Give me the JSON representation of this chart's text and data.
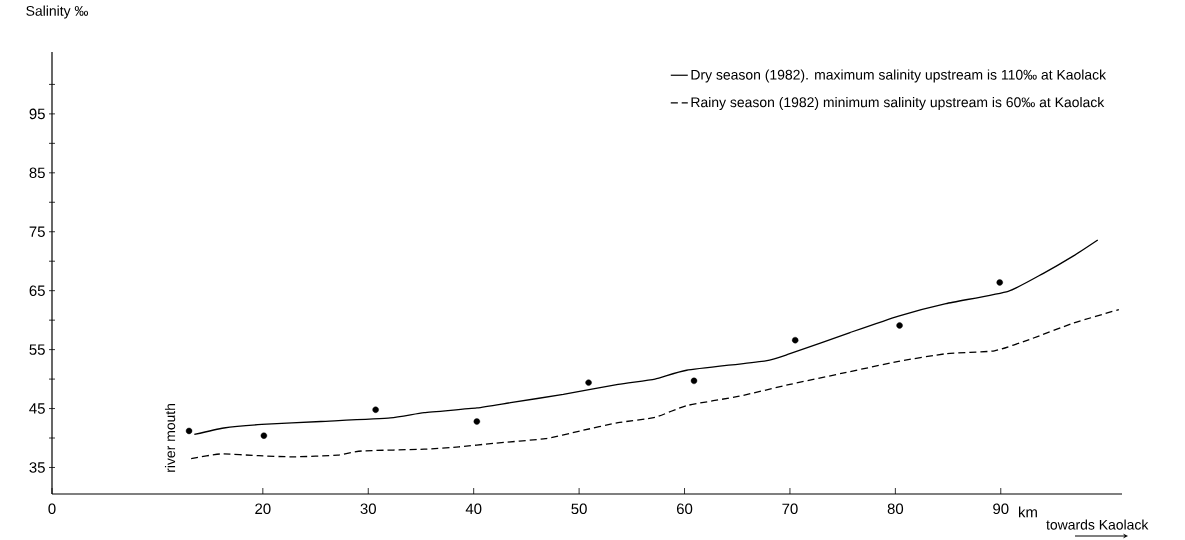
{
  "chart_data": {
    "type": "line",
    "ylabel": "Salinity ‰",
    "xlabel": "km",
    "annotations": [
      "river mouth",
      "towards Kaolack"
    ],
    "xlim": [
      0,
      101.5
    ],
    "xticks": [
      0,
      20,
      30,
      40,
      50,
      60,
      70,
      80,
      90
    ],
    "ylim": [
      30.5,
      105.5
    ],
    "yticks": [
      35,
      {
        "value": 40,
        "label": null
      },
      45,
      {
        "value": 50,
        "label": null
      },
      55,
      {
        "value": 60,
        "label": null
      },
      65,
      {
        "value": 70,
        "label": null
      },
      75,
      {
        "value": 80,
        "label": null
      },
      85,
      {
        "value": 90,
        "label": null
      },
      95,
      {
        "value": 100,
        "label": null
      }
    ],
    "legend": "top right",
    "grid": false,
    "series": [
      {
        "name": "Dry season (1982). maximum salinity upstream is 110‰ at Kaolack",
        "color": "#000000",
        "line_style": "solid",
        "marker": "none",
        "x": [
          13.5,
          16.3,
          19.9,
          25.5,
          32.1,
          35.3,
          40.3,
          43.5,
          48.5,
          53.7,
          57.2,
          60.2,
          67.7,
          70.0,
          75.7,
          80.3,
          84.8,
          90.7,
          94.0,
          96.9,
          99.2
        ],
        "values": [
          40.6,
          41.7,
          42.3,
          42.8,
          43.4,
          44.3,
          45.1,
          46.0,
          47.4,
          49.1,
          50.0,
          51.5,
          53.1,
          54.3,
          57.9,
          60.7,
          62.8,
          64.9,
          67.9,
          70.9,
          73.6
        ]
      },
      {
        "name": "Rainy season (1982) minimum salinity upstream is 60‰ at Kaolack",
        "color": "#000000",
        "line_style": "dashed",
        "marker": "none",
        "x": [
          13.2,
          16.0,
          19.6,
          22.9,
          27.1,
          29.4,
          35.3,
          38.6,
          41.9,
          46.8,
          50.1,
          53.7,
          57.2,
          60.2,
          65.2,
          70.0,
          75.0,
          80.3,
          84.8,
          89.4,
          93.0,
          96.9,
          101.2
        ],
        "values": [
          36.5,
          37.3,
          37.0,
          36.8,
          37.1,
          37.8,
          38.1,
          38.5,
          39.1,
          39.9,
          41.2,
          42.6,
          43.5,
          45.5,
          47.1,
          49.1,
          51.0,
          53.0,
          54.3,
          54.8,
          56.9,
          59.5,
          61.8
        ]
      },
      {
        "type": "scatter",
        "color": "#000000",
        "marker": "circle",
        "x": [
          13.0,
          20.1,
          30.7,
          40.3,
          50.9,
          60.9,
          70.5,
          80.4,
          89.9
        ],
        "values": [
          41.2,
          40.4,
          44.8,
          42.8,
          49.4,
          49.7,
          56.6,
          59.1,
          66.4
        ]
      }
    ]
  }
}
